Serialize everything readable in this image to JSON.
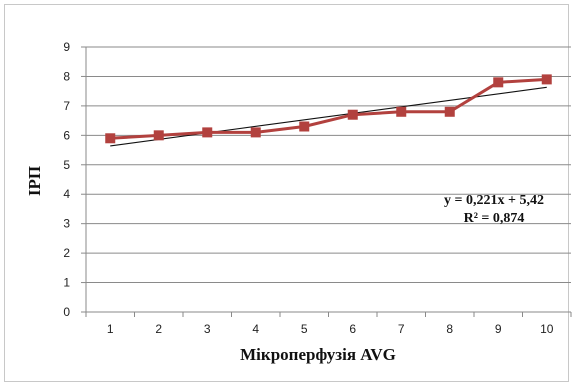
{
  "chart_data": {
    "type": "line",
    "x": [
      1,
      2,
      3,
      4,
      5,
      6,
      7,
      8,
      9,
      10
    ],
    "series": [
      {
        "values": [
          5.9,
          6.0,
          6.1,
          6.1,
          6.3,
          6.7,
          6.8,
          6.8,
          7.8,
          7.9
        ],
        "color": "#b2413e"
      }
    ],
    "trendline": {
      "type": "linear",
      "slope": 0.221,
      "intercept": 5.42,
      "equation": "y = 0,221x + 5,42",
      "r_squared": "R² = 0,874",
      "color": "#111111"
    },
    "xlabel": "Мікроперфузія AVG",
    "ylabel": "ІРП",
    "xticks": [
      "1",
      "2",
      "3",
      "4",
      "5",
      "6",
      "7",
      "8",
      "9",
      "10"
    ],
    "yticks": [
      "0",
      "1",
      "2",
      "3",
      "4",
      "5",
      "6",
      "7",
      "8",
      "9"
    ],
    "ylim": [
      0,
      9
    ],
    "grid": "horizontal",
    "marker": "square"
  }
}
